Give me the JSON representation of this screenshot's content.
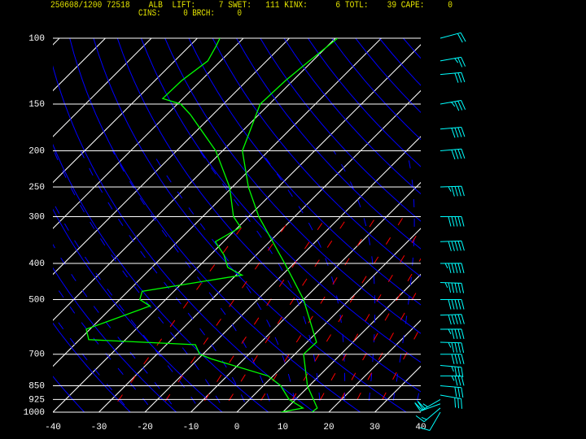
{
  "chart_data": {
    "type": "skewt",
    "header": [
      "250608/1200 72518    ALB  LIFT:     7 SWET:   111 KINX:      6 TOTL:    39 CAPE:     0",
      "CINS:     0 BRCH:     0"
    ],
    "xlim": [
      -40,
      40
    ],
    "xticks": [
      -40,
      -30,
      -20,
      -10,
      0,
      10,
      20,
      30,
      40
    ],
    "ylim": [
      1000,
      100
    ],
    "ylog": true,
    "yticks": [
      100,
      150,
      200,
      250,
      300,
      400,
      500,
      700,
      850,
      925,
      1000
    ],
    "grid": true,
    "series": [
      {
        "color": "#00ff00",
        "pressure": [
          1000,
          975,
          925,
          850,
          700,
          650,
          500,
          400,
          300,
          250,
          200,
          150,
          130,
          115,
          100
        ],
        "values": [
          16.3,
          16.6,
          13.9,
          9.6,
          1.9,
          2.1,
          -10,
          -22,
          -37.8,
          -46.5,
          -55.7,
          -62,
          -61.6,
          -60.7,
          -59.5
        ]
      },
      {
        "color": "#00ff00",
        "pressure": [
          1000,
          975,
          925,
          850,
          800,
          720,
          700,
          660,
          640,
          600,
          520,
          500,
          475,
          430,
          410,
          380,
          350,
          320,
          300,
          250,
          200,
          160,
          150,
          145,
          130,
          115,
          105,
          100
        ],
        "values": [
          9.6,
          13.5,
          8.6,
          3.8,
          -1.1,
          -17.2,
          -20.7,
          -23.7,
          -48,
          -50.8,
          -42,
          -45.6,
          -46.9,
          -28.7,
          -33.5,
          -37,
          -41.8,
          -39.5,
          -43.3,
          -50.6,
          -61.5,
          -74.9,
          -79.3,
          -84.4,
          -84.2,
          -82.8,
          -84.2,
          -85.1
        ]
      }
    ],
    "winds": {
      "color": "#00ffff",
      "pressure": [
        1000,
        975,
        950,
        925,
        900,
        850,
        800,
        750,
        700,
        650,
        600,
        550,
        500,
        450,
        400,
        350,
        300,
        250,
        200,
        175,
        150,
        125,
        115,
        100
      ],
      "direction": [
        210,
        230,
        250,
        240,
        100,
        95,
        90,
        95,
        90,
        92,
        90,
        88,
        90,
        92,
        90,
        88,
        90,
        88,
        85,
        85,
        80,
        85,
        80,
        75
      ],
      "speed": [
        10,
        15,
        20,
        25,
        30,
        30,
        35,
        35,
        40,
        45,
        45,
        50,
        50,
        55,
        55,
        50,
        50,
        45,
        40,
        40,
        35,
        30,
        25,
        20
      ]
    }
  }
}
